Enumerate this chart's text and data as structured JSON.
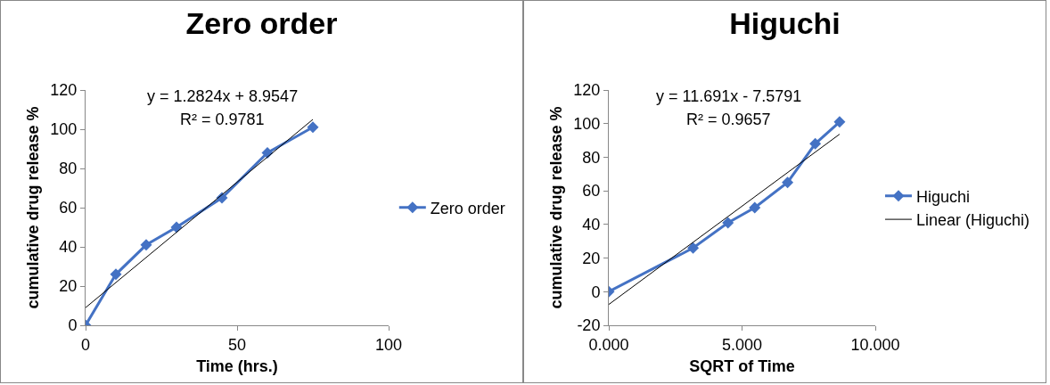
{
  "chart_data": [
    {
      "type": "line",
      "title": "Zero order",
      "xlabel": "Time (hrs.)",
      "ylabel": "cumulative drug release %",
      "x": [
        0,
        10,
        20,
        30,
        45,
        60,
        75
      ],
      "series": [
        {
          "name": "Zero order",
          "color": "#4472c4",
          "values": [
            0,
            26,
            41,
            50,
            65,
            88,
            101
          ]
        },
        {
          "type": "line",
          "color": "#000000",
          "marker": "none",
          "x": [
            0,
            75
          ],
          "values": [
            9,
            105
          ]
        }
      ],
      "xlim": [
        0,
        100
      ],
      "xticks": [
        0,
        50,
        100
      ],
      "ylim": [
        0,
        120
      ],
      "yticks": [
        0,
        20,
        40,
        60,
        80,
        100,
        120
      ],
      "annotations": [
        "y = 1.2824x + 8.9547",
        "R² = 0.9781"
      ],
      "grid": false,
      "legend": "right",
      "marker": "diamond",
      "line_style": "solid"
    },
    {
      "type": "line",
      "title": "Higuchi",
      "xlabel": "SQRT of Time",
      "ylabel": "cumulative drug release %",
      "x": [
        0,
        3.162,
        4.472,
        5.477,
        6.708,
        7.746,
        8.66
      ],
      "series": [
        {
          "name": "Higuchi",
          "color": "#4472c4",
          "values": [
            0,
            26,
            41,
            50,
            65,
            88,
            101
          ]
        },
        {
          "name": "Linear (Higuchi)",
          "type": "line",
          "color": "#000000",
          "marker": "none",
          "x": [
            0,
            8.66
          ],
          "values": [
            -7.6,
            93.7
          ]
        }
      ],
      "xlim": [
        0,
        10
      ],
      "xticks": [
        {
          "value": 0,
          "label": "0.000"
        },
        {
          "value": 5,
          "label": "5.000"
        },
        {
          "value": 10,
          "label": "10.000"
        }
      ],
      "ylim": [
        -20,
        120
      ],
      "yticks": [
        -20,
        0,
        20,
        40,
        60,
        80,
        100,
        120
      ],
      "annotations": [
        "y = 11.691x - 7.5791",
        "R² = 0.9657"
      ],
      "grid": false,
      "legend": "right",
      "marker": "diamond",
      "line_style": "solid"
    }
  ]
}
